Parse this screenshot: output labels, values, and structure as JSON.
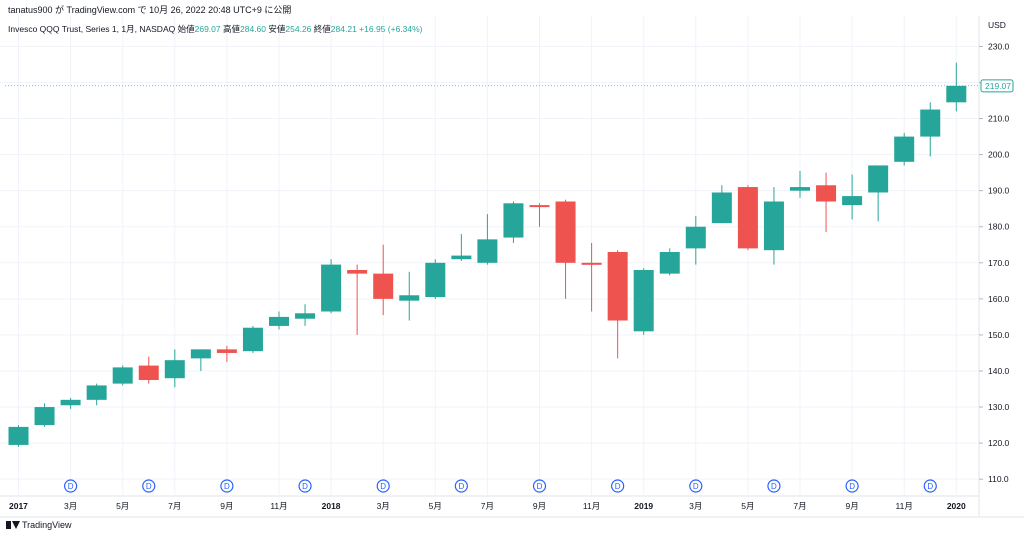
{
  "header": {
    "published_by": "tanatus900 が TradingView.com で 10月 26, 2022 20:48 UTC+9 に公開"
  },
  "legend": {
    "symbol": "Invesco QQQ Trust, Series 1, 1月, NASDAQ",
    "open_label": "始値",
    "open_value": "269.07",
    "high_label": "高値",
    "high_value": "284.60",
    "low_label": "安値",
    "low_value": "254.26",
    "close_label": "終値",
    "close_value": "284.21",
    "change": "+16.95 (+6.34%)"
  },
  "footer": {
    "brand": "TradingView"
  },
  "colors": {
    "up": "#26a69a",
    "down": "#ef5350",
    "grid": "#f0f3fa",
    "axis_text": "#131722",
    "dividend_marker": "#2962ff",
    "last_price_label": "#26a69a"
  },
  "chart_data": {
    "type": "candlestick",
    "currency_label": "USD",
    "y_axis_ticks": [
      110,
      120,
      130,
      140,
      150,
      160,
      170,
      180,
      190,
      200,
      210,
      220,
      230
    ],
    "ylim": [
      107,
      234
    ],
    "grid": true,
    "last_price_label": "219.07",
    "last_price_value": 219.07,
    "x_axis_labels": [
      {
        "index": 0,
        "label": "2017",
        "bold": true
      },
      {
        "index": 2,
        "label": "3月"
      },
      {
        "index": 4,
        "label": "5月"
      },
      {
        "index": 6,
        "label": "7月"
      },
      {
        "index": 8,
        "label": "9月"
      },
      {
        "index": 10,
        "label": "11月"
      },
      {
        "index": 12,
        "label": "2018",
        "bold": true
      },
      {
        "index": 14,
        "label": "3月"
      },
      {
        "index": 16,
        "label": "5月"
      },
      {
        "index": 18,
        "label": "7月"
      },
      {
        "index": 20,
        "label": "9月"
      },
      {
        "index": 22,
        "label": "11月"
      },
      {
        "index": 24,
        "label": "2019",
        "bold": true
      },
      {
        "index": 26,
        "label": "3月"
      },
      {
        "index": 28,
        "label": "5月"
      },
      {
        "index": 30,
        "label": "7月"
      },
      {
        "index": 32,
        "label": "9月"
      },
      {
        "index": 34,
        "label": "11月"
      },
      {
        "index": 36,
        "label": "2020",
        "bold": true
      }
    ],
    "dividend_marker_label": "D",
    "dividend_indices": [
      2,
      5,
      8,
      11,
      14,
      17,
      20,
      23,
      26,
      29,
      32,
      35
    ],
    "candles": [
      {
        "o": 119.5,
        "h": 125.0,
        "l": 119.0,
        "c": 124.5
      },
      {
        "o": 125.0,
        "h": 131.0,
        "l": 124.5,
        "c": 130.0
      },
      {
        "o": 130.5,
        "h": 132.5,
        "l": 129.5,
        "c": 132.0
      },
      {
        "o": 132.0,
        "h": 136.5,
        "l": 130.5,
        "c": 136.0
      },
      {
        "o": 136.5,
        "h": 141.5,
        "l": 136.0,
        "c": 141.0
      },
      {
        "o": 141.5,
        "h": 144.0,
        "l": 136.5,
        "c": 137.5
      },
      {
        "o": 138.0,
        "h": 146.0,
        "l": 135.5,
        "c": 143.0
      },
      {
        "o": 143.5,
        "h": 146.0,
        "l": 140.0,
        "c": 146.0
      },
      {
        "o": 146.0,
        "h": 147.0,
        "l": 142.5,
        "c": 145.0
      },
      {
        "o": 145.5,
        "h": 152.5,
        "l": 145.0,
        "c": 152.0
      },
      {
        "o": 152.5,
        "h": 156.5,
        "l": 151.5,
        "c": 155.0
      },
      {
        "o": 154.5,
        "h": 158.5,
        "l": 152.5,
        "c": 156.0
      },
      {
        "o": 156.5,
        "h": 171.0,
        "l": 156.0,
        "c": 169.5
      },
      {
        "o": 168.0,
        "h": 169.5,
        "l": 150.0,
        "c": 167.0
      },
      {
        "o": 167.0,
        "h": 175.0,
        "l": 155.5,
        "c": 160.0
      },
      {
        "o": 159.5,
        "h": 167.5,
        "l": 154.0,
        "c": 161.0
      },
      {
        "o": 160.5,
        "h": 171.0,
        "l": 160.0,
        "c": 170.0
      },
      {
        "o": 171.0,
        "h": 178.0,
        "l": 170.5,
        "c": 172.0
      },
      {
        "o": 170.0,
        "h": 183.5,
        "l": 169.5,
        "c": 176.5
      },
      {
        "o": 177.0,
        "h": 187.0,
        "l": 175.5,
        "c": 186.5
      },
      {
        "o": 186.0,
        "h": 186.5,
        "l": 180.0,
        "c": 185.5
      },
      {
        "o": 187.0,
        "h": 187.5,
        "l": 160.0,
        "c": 170.0
      },
      {
        "o": 170.0,
        "h": 175.5,
        "l": 156.5,
        "c": 169.5
      },
      {
        "o": 173.0,
        "h": 173.5,
        "l": 143.5,
        "c": 154.0
      },
      {
        "o": 151.0,
        "h": 168.5,
        "l": 150.0,
        "c": 168.0
      },
      {
        "o": 167.0,
        "h": 174.0,
        "l": 166.5,
        "c": 173.0
      },
      {
        "o": 174.0,
        "h": 183.0,
        "l": 169.5,
        "c": 180.0
      },
      {
        "o": 181.0,
        "h": 191.5,
        "l": 181.0,
        "c": 189.5
      },
      {
        "o": 191.0,
        "h": 191.5,
        "l": 173.5,
        "c": 174.0
      },
      {
        "o": 173.5,
        "h": 191.0,
        "l": 169.5,
        "c": 187.0
      },
      {
        "o": 190.0,
        "h": 195.5,
        "l": 188.0,
        "c": 191.0
      },
      {
        "o": 191.5,
        "h": 195.0,
        "l": 178.5,
        "c": 187.0
      },
      {
        "o": 186.0,
        "h": 194.5,
        "l": 182.0,
        "c": 188.5
      },
      {
        "o": 189.5,
        "h": 197.0,
        "l": 181.5,
        "c": 197.0
      },
      {
        "o": 198.0,
        "h": 206.0,
        "l": 197.0,
        "c": 205.0
      },
      {
        "o": 205.0,
        "h": 214.5,
        "l": 199.5,
        "c": 212.5
      },
      {
        "o": 214.5,
        "h": 225.5,
        "l": 212.0,
        "c": 219.07
      }
    ]
  }
}
